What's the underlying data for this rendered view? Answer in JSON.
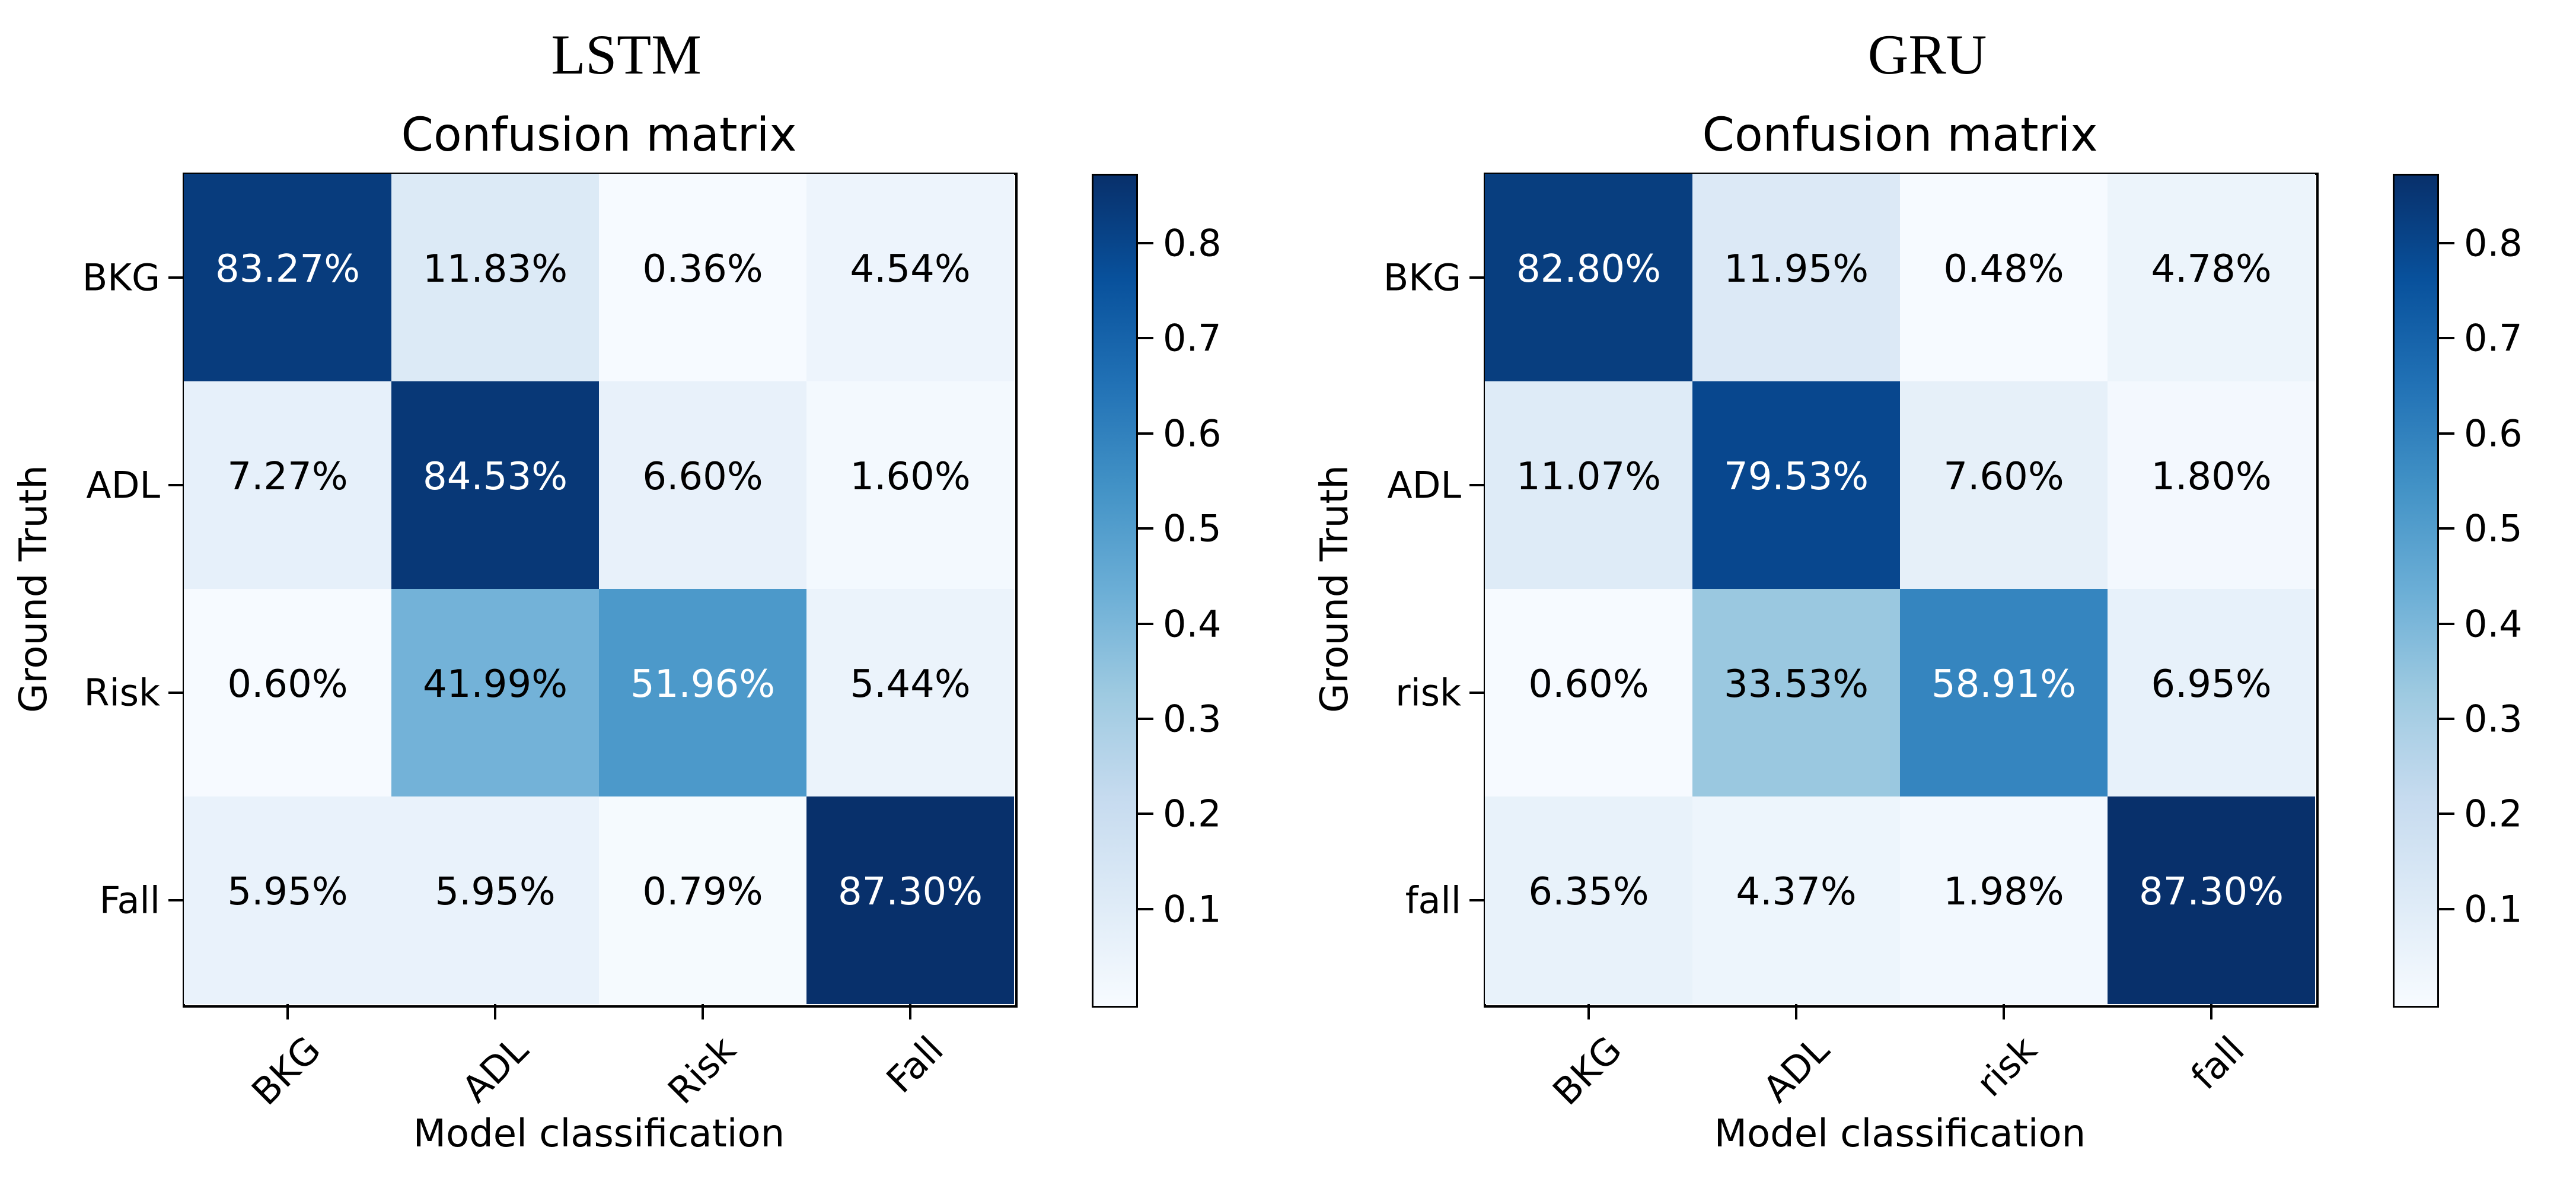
{
  "figure": {
    "background": "#ffffff",
    "colormap": "Blues",
    "text_color": "#000000",
    "cell_text_light": "#ffffff",
    "cell_text_dark": "#000000",
    "accent_dark": "#08306b",
    "accent_light": "#f7fbff"
  },
  "chart_data": [
    {
      "type": "heatmap",
      "model_title": "LSTM",
      "title": "Confusion matrix",
      "xlabel": "Model classification",
      "ylabel": "Ground Truth",
      "x_categories": [
        "BKG",
        "ADL",
        "Risk",
        "Fall"
      ],
      "y_categories": [
        "BKG",
        "ADL",
        "Risk",
        "Fall"
      ],
      "values_percent": [
        [
          83.27,
          11.83,
          0.36,
          4.54
        ],
        [
          7.27,
          84.53,
          6.6,
          1.6
        ],
        [
          0.6,
          41.99,
          51.96,
          5.44
        ],
        [
          5.95,
          5.95,
          0.79,
          87.3
        ]
      ],
      "cell_labels": [
        [
          "83.27%",
          "11.83%",
          "0.36%",
          "4.54%"
        ],
        [
          "7.27%",
          "84.53%",
          "6.60%",
          "1.60%"
        ],
        [
          "0.60%",
          "41.99%",
          "51.96%",
          "5.44%"
        ],
        [
          "5.95%",
          "5.95%",
          "0.79%",
          "87.30%"
        ]
      ],
      "colorbar": {
        "tick_labels": [
          "0.8",
          "0.7",
          "0.6",
          "0.5",
          "0.4",
          "0.3",
          "0.2",
          "0.1"
        ],
        "tick_values": [
          0.8,
          0.7,
          0.6,
          0.5,
          0.4,
          0.3,
          0.2,
          0.1
        ],
        "vmin": 0.0,
        "vmax": 0.873
      }
    },
    {
      "type": "heatmap",
      "model_title": "GRU",
      "title": "Confusion matrix",
      "xlabel": "Model classification",
      "ylabel": "Ground Truth",
      "x_categories": [
        "BKG",
        "ADL",
        "risk",
        "fall"
      ],
      "y_categories": [
        "BKG",
        "ADL",
        "risk",
        "fall"
      ],
      "values_percent": [
        [
          82.8,
          11.95,
          0.48,
          4.78
        ],
        [
          11.07,
          79.53,
          7.6,
          1.8
        ],
        [
          0.6,
          33.53,
          58.91,
          6.95
        ],
        [
          6.35,
          4.37,
          1.98,
          87.3
        ]
      ],
      "cell_labels": [
        [
          "82.80%",
          "11.95%",
          "0.48%",
          "4.78%"
        ],
        [
          "11.07%",
          "79.53%",
          "7.60%",
          "1.80%"
        ],
        [
          "0.60%",
          "33.53%",
          "58.91%",
          "6.95%"
        ],
        [
          "6.35%",
          "4.37%",
          "1.98%",
          "87.30%"
        ]
      ],
      "colorbar": {
        "tick_labels": [
          "0.8",
          "0.7",
          "0.6",
          "0.5",
          "0.4",
          "0.3",
          "0.2",
          "0.1"
        ],
        "tick_values": [
          0.8,
          0.7,
          0.6,
          0.5,
          0.4,
          0.3,
          0.2,
          0.1
        ],
        "vmin": 0.0,
        "vmax": 0.873
      }
    }
  ]
}
